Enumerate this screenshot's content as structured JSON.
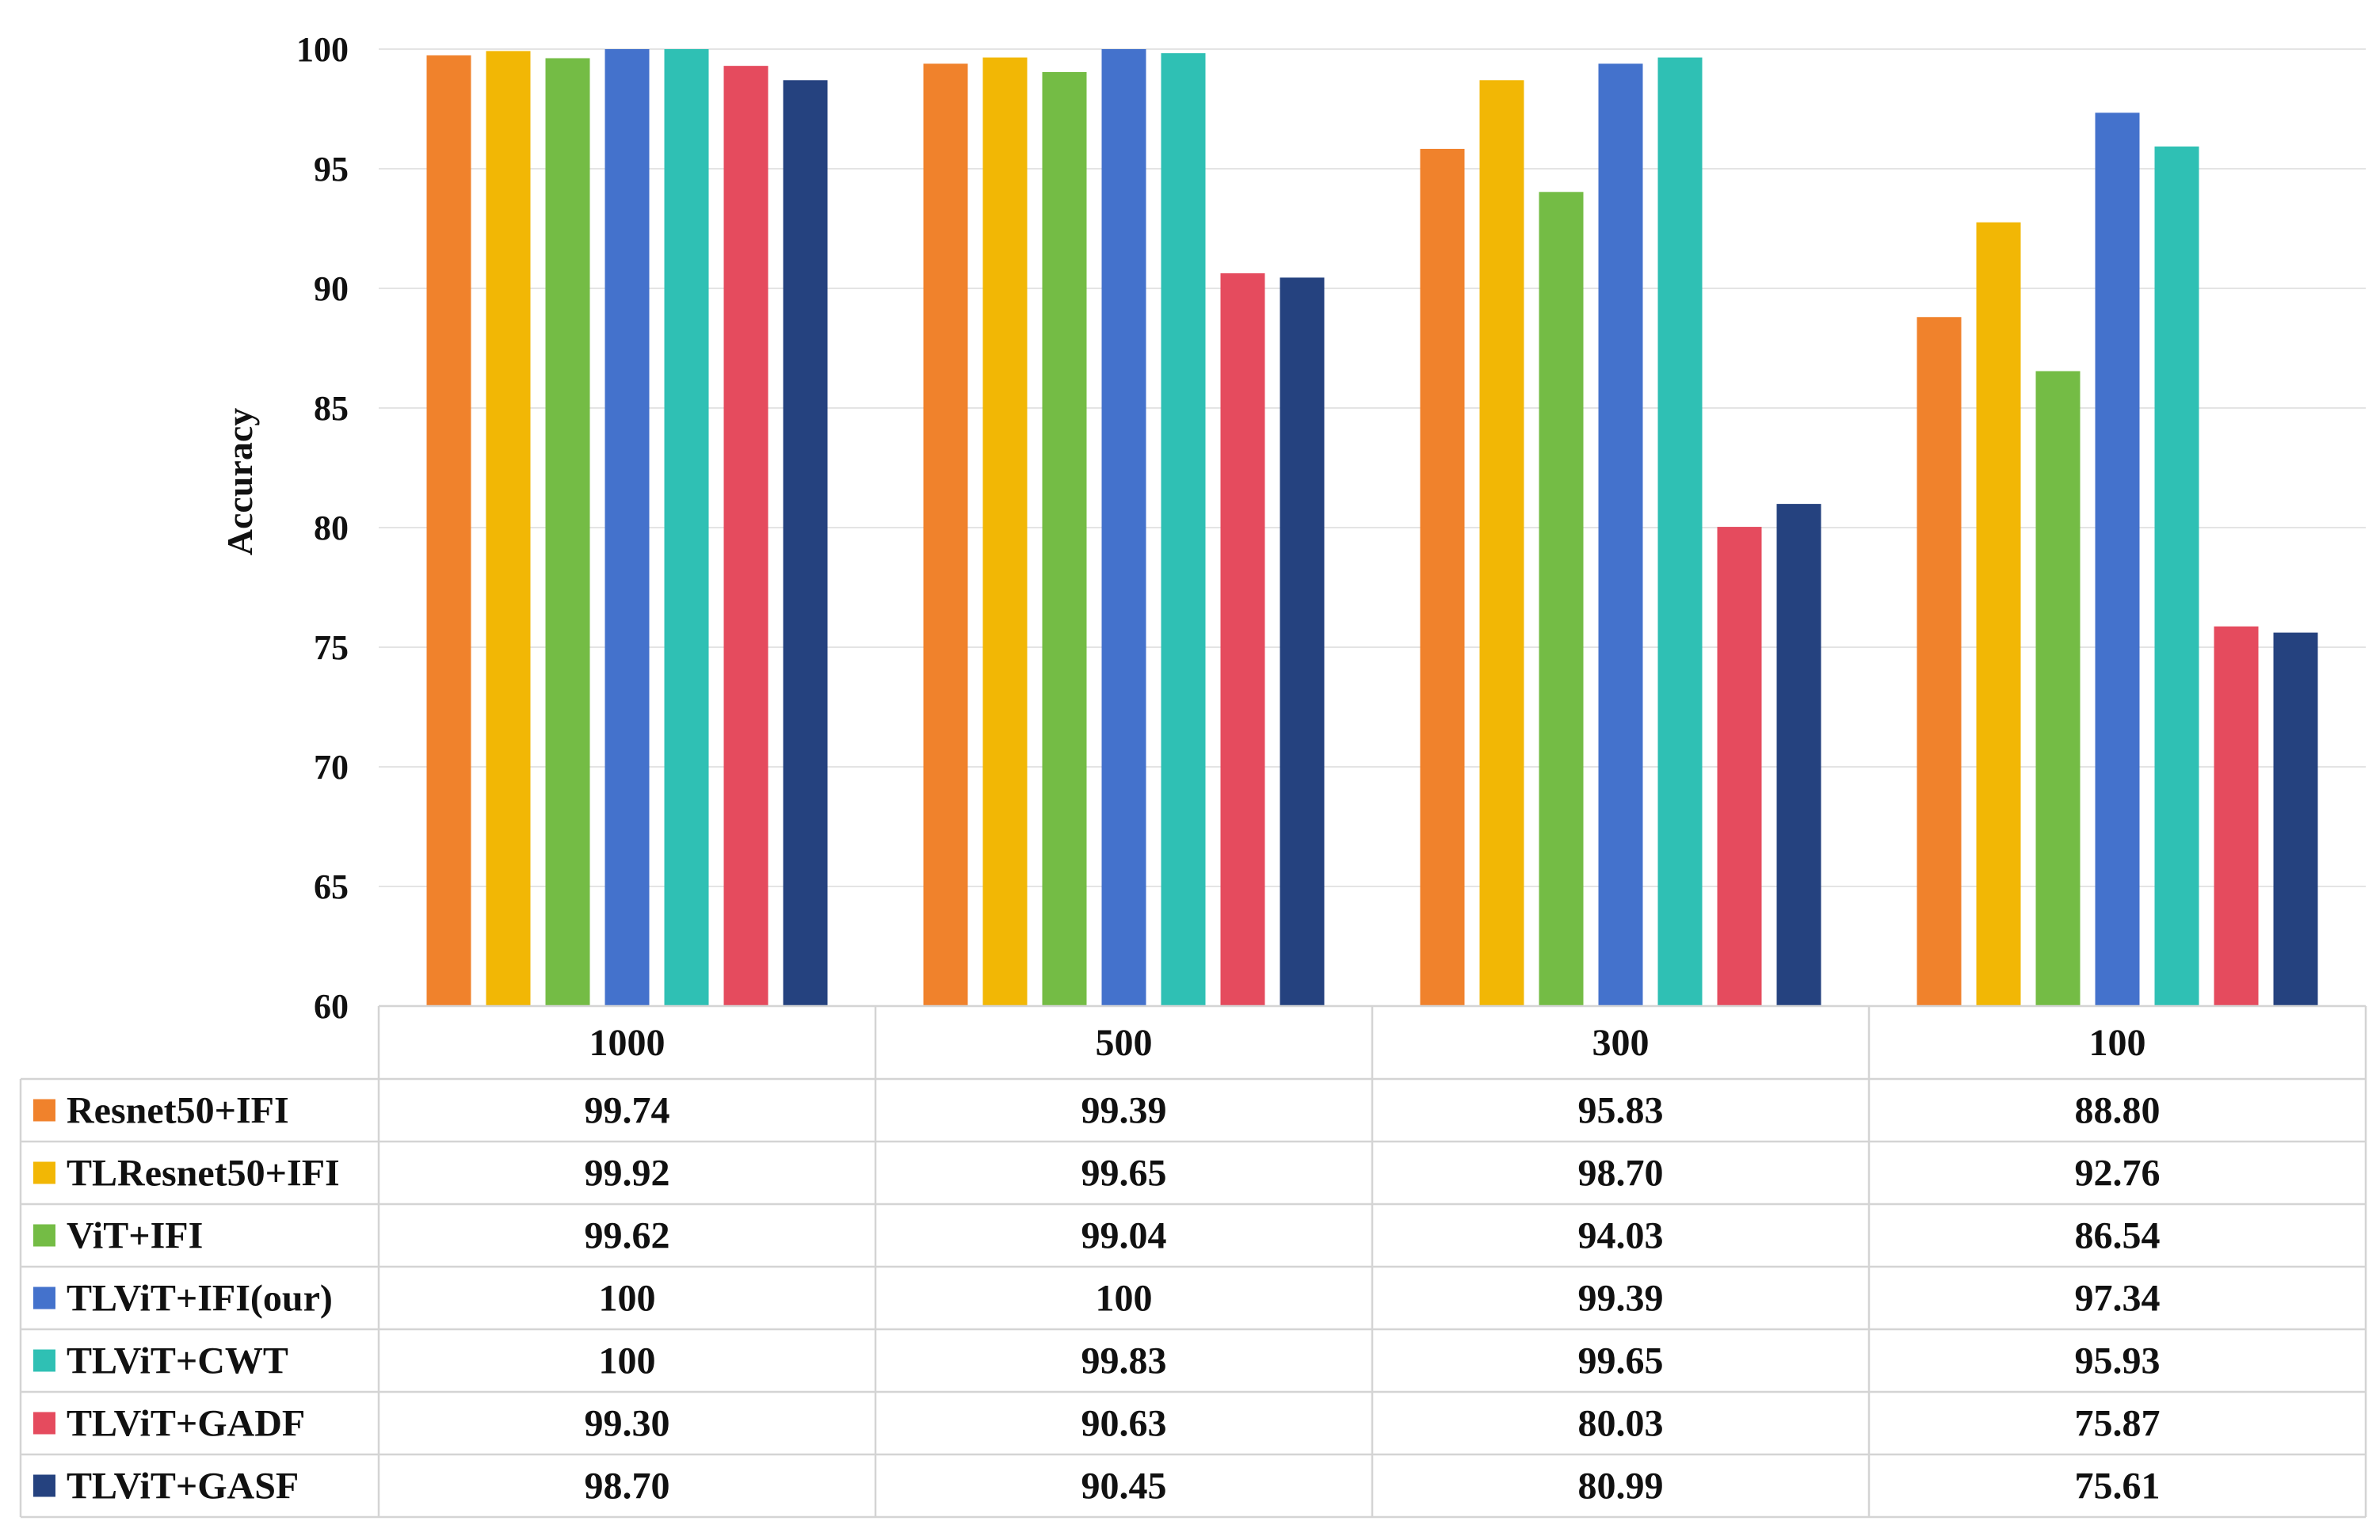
{
  "chart_data": {
    "type": "bar",
    "ylabel": "Accuracy",
    "xlabel": "",
    "ylim": [
      60,
      100
    ],
    "yticks": [
      60,
      65,
      70,
      75,
      80,
      85,
      90,
      95,
      100
    ],
    "categories": [
      "1000",
      "500",
      "300",
      "100"
    ],
    "grid": true,
    "legend": "data-table-left",
    "series": [
      {
        "name": "Resnet50+IFI",
        "color": "#F0822C",
        "values": [
          99.74,
          99.39,
          95.83,
          88.8
        ],
        "labels": [
          "99.74",
          "99.39",
          "95.83",
          "88.80"
        ]
      },
      {
        "name": "TLResnet50+IFI",
        "color": "#F2B705",
        "values": [
          99.92,
          99.65,
          98.7,
          92.76
        ],
        "labels": [
          "99.92",
          "99.65",
          "98.70",
          "92.76"
        ]
      },
      {
        "name": "ViT+IFI",
        "color": "#74BC45",
        "values": [
          99.62,
          99.04,
          94.03,
          86.54
        ],
        "labels": [
          "99.62",
          "99.04",
          "94.03",
          "86.54"
        ]
      },
      {
        "name": "TLViT+IFI(our)",
        "color": "#4472CC",
        "values": [
          100,
          100,
          99.39,
          97.34
        ],
        "labels": [
          "100",
          "100",
          "99.39",
          "97.34"
        ]
      },
      {
        "name": "TLViT+CWT",
        "color": "#2FC0B4",
        "values": [
          100,
          99.83,
          99.65,
          95.93
        ],
        "labels": [
          "100",
          "99.83",
          "99.65",
          "95.93"
        ]
      },
      {
        "name": "TLViT+GADF",
        "color": "#E54B5E",
        "values": [
          99.3,
          90.63,
          80.03,
          75.87
        ],
        "labels": [
          "99.30",
          "90.63",
          "80.03",
          "75.87"
        ]
      },
      {
        "name": "TLViT+GASF",
        "color": "#25427F",
        "values": [
          98.7,
          90.45,
          80.99,
          75.61
        ],
        "labels": [
          "98.70",
          "90.45",
          "80.99",
          "75.61"
        ]
      }
    ]
  }
}
